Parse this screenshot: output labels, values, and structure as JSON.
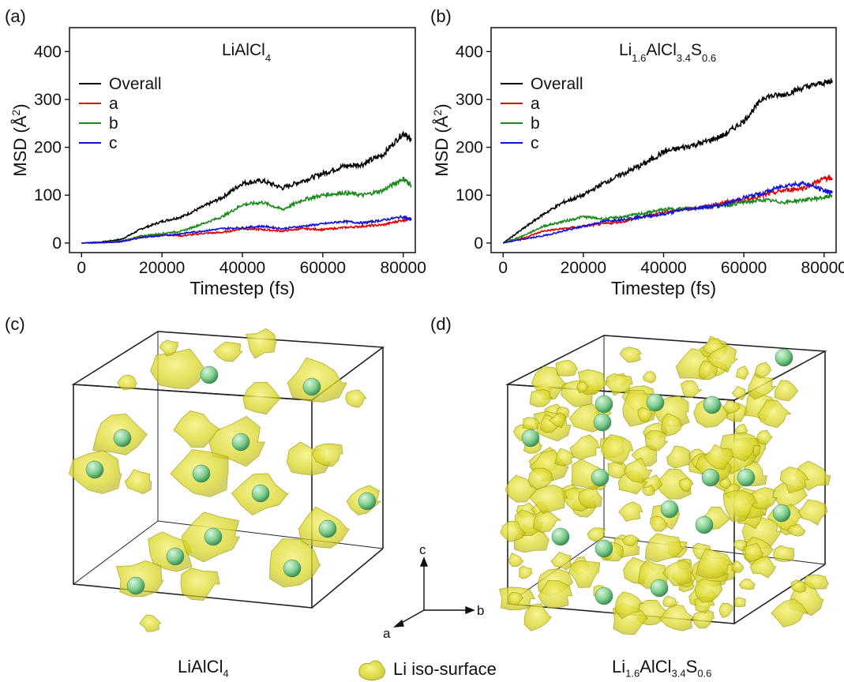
{
  "panels": {
    "a": "(a)",
    "b": "(b)",
    "c": "(c)",
    "d": "(d)"
  },
  "colors": {
    "overall": "#000000",
    "a": "#e00000",
    "b": "#1a8a1a",
    "c": "#1010dd",
    "iso": "#e6e62a",
    "li": "#7fcf8e"
  },
  "chart_data": [
    {
      "type": "line",
      "title_main": "LiAlCl",
      "title_sub": "4",
      "xlabel": "Timestep (fs)",
      "ylabel": "MSD (Å²)",
      "ylabel_main": "MSD (Å",
      "ylabel_sup": "2",
      "ylabel_end": ")",
      "xlim": [
        -3000,
        83000
      ],
      "ylim": [
        -20,
        450
      ],
      "xticks": [
        0,
        20000,
        40000,
        60000,
        80000
      ],
      "yticks": [
        0,
        100,
        200,
        300,
        400
      ],
      "legend_position": "upper-left",
      "x": [
        0,
        5000,
        10000,
        15000,
        20000,
        25000,
        30000,
        35000,
        40000,
        45000,
        50000,
        55000,
        60000,
        65000,
        70000,
        75000,
        80000,
        82000
      ],
      "series": [
        {
          "name": "Overall",
          "color_key": "overall",
          "values": [
            0,
            2,
            8,
            30,
            45,
            55,
            75,
            95,
            125,
            130,
            115,
            130,
            145,
            160,
            165,
            185,
            230,
            215
          ]
        },
        {
          "name": "a",
          "color_key": "a",
          "values": [
            0,
            1,
            3,
            12,
            18,
            15,
            20,
            22,
            30,
            28,
            25,
            30,
            28,
            32,
            35,
            38,
            48,
            50
          ]
        },
        {
          "name": "b",
          "color_key": "b",
          "values": [
            0,
            1,
            4,
            15,
            20,
            25,
            40,
            55,
            80,
            85,
            70,
            90,
            100,
            105,
            100,
            110,
            135,
            120
          ]
        },
        {
          "name": "c",
          "color_key": "c",
          "values": [
            0,
            1,
            3,
            12,
            15,
            20,
            25,
            30,
            32,
            35,
            30,
            35,
            40,
            45,
            42,
            48,
            55,
            48
          ]
        }
      ]
    },
    {
      "type": "line",
      "title_main": "Li",
      "title_sub1": "1.6",
      "title_mid": "AlCl",
      "title_sub2": "3.4",
      "title_mid2": "S",
      "title_sub3": "0.6",
      "xlabel": "Timestep (fs)",
      "ylabel": "MSD (Å²)",
      "ylabel_main": "MSD (Å",
      "ylabel_sup": "2",
      "ylabel_end": ")",
      "xlim": [
        -3000,
        83000
      ],
      "ylim": [
        -20,
        450
      ],
      "xticks": [
        0,
        20000,
        40000,
        60000,
        80000
      ],
      "yticks": [
        0,
        100,
        200,
        300,
        400
      ],
      "legend_position": "upper-left",
      "x": [
        0,
        5000,
        10000,
        15000,
        20000,
        25000,
        30000,
        35000,
        40000,
        45000,
        50000,
        55000,
        60000,
        65000,
        70000,
        75000,
        80000,
        82000
      ],
      "series": [
        {
          "name": "Overall",
          "color_key": "overall",
          "values": [
            0,
            30,
            60,
            85,
            100,
            125,
            145,
            165,
            190,
            200,
            210,
            225,
            255,
            305,
            310,
            325,
            335,
            340
          ]
        },
        {
          "name": "a",
          "color_key": "a",
          "values": [
            0,
            10,
            25,
            30,
            35,
            40,
            45,
            55,
            65,
            70,
            75,
            85,
            90,
            100,
            110,
            115,
            135,
            135
          ]
        },
        {
          "name": "b",
          "color_key": "b",
          "values": [
            0,
            15,
            35,
            45,
            55,
            50,
            55,
            62,
            70,
            72,
            75,
            78,
            85,
            90,
            85,
            90,
            95,
            100
          ]
        },
        {
          "name": "c",
          "color_key": "c",
          "values": [
            0,
            8,
            15,
            25,
            35,
            45,
            50,
            55,
            60,
            70,
            75,
            80,
            95,
            105,
            120,
            125,
            110,
            105
          ]
        }
      ]
    }
  ],
  "axis_labels": {
    "c": "c",
    "a": "a",
    "b": "b"
  },
  "captions": {
    "left_main": "LiAlCl",
    "left_sub": "4",
    "legend": "Li iso-surface",
    "right_main1": "Li",
    "right_sub1": "1.6",
    "right_main2": "AlCl",
    "right_sub2": "3.4",
    "right_main3": "S",
    "right_sub3": "0.6"
  }
}
